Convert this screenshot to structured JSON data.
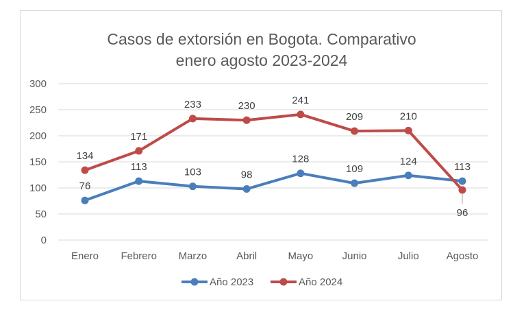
{
  "chart_data": {
    "type": "line",
    "title": "Casos de extorsión en Bogota. Comparativo enero agosto 2023-2024",
    "title_lines": [
      "Casos de extorsión en Bogota. Comparativo",
      "enero agosto 2023-2024"
    ],
    "xlabel": "",
    "ylabel": "",
    "categories": [
      "Enero",
      "Febrero",
      "Marzo",
      "Abril",
      "Mayo",
      "Junio",
      "Julio",
      "Agosto"
    ],
    "ylim": [
      0,
      300
    ],
    "yticks": [
      0,
      50,
      100,
      150,
      200,
      250,
      300
    ],
    "grid": true,
    "legend": "bottom",
    "series": [
      {
        "name": "Año 2023",
        "color": "#4a7ebb",
        "values": [
          76,
          113,
          103,
          98,
          128,
          109,
          124,
          113
        ],
        "label_position": "above"
      },
      {
        "name": "Año 2024",
        "color": "#be4b48",
        "values": [
          134,
          171,
          233,
          230,
          241,
          209,
          210,
          96
        ],
        "label_position": "above",
        "label_below_index": [
          7
        ]
      }
    ]
  }
}
